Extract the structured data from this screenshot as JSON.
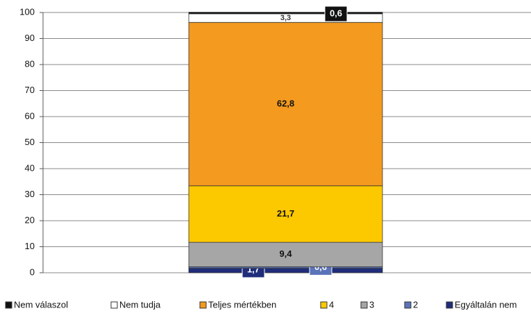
{
  "chart_data": {
    "type": "stacked_bar",
    "categories": [
      null
    ],
    "series": [
      {
        "name": "Egyáltalán nem",
        "color": "#1f2d7a",
        "values": [
          1.7
        ],
        "value_labels": [
          "1,7"
        ]
      },
      {
        "name": "2",
        "color": "#5b73b8",
        "values": [
          0.6
        ],
        "value_labels": [
          "0,6"
        ]
      },
      {
        "name": "3",
        "color": "#a6a6a6",
        "values": [
          9.4
        ],
        "value_labels": [
          "9,4"
        ]
      },
      {
        "name": "4",
        "color": "#fcc800",
        "values": [
          21.7
        ],
        "value_labels": [
          "21,7"
        ]
      },
      {
        "name": "Teljes mértékben",
        "color": "#f39a1f",
        "values": [
          62.8
        ],
        "value_labels": [
          "62,8"
        ]
      },
      {
        "name": "Nem tudja",
        "color": "#ffffff",
        "values": [
          3.3
        ],
        "value_labels": [
          "3,3"
        ]
      },
      {
        "name": "Nem válaszol",
        "color": "#111111",
        "values": [
          0.6
        ],
        "value_labels": [
          "0,6"
        ]
      }
    ],
    "ylim": [
      0,
      100
    ],
    "yticks": [
      0,
      10,
      20,
      30,
      40,
      50,
      60,
      70,
      80,
      90,
      100
    ],
    "grid": true,
    "legend": "bottom"
  }
}
